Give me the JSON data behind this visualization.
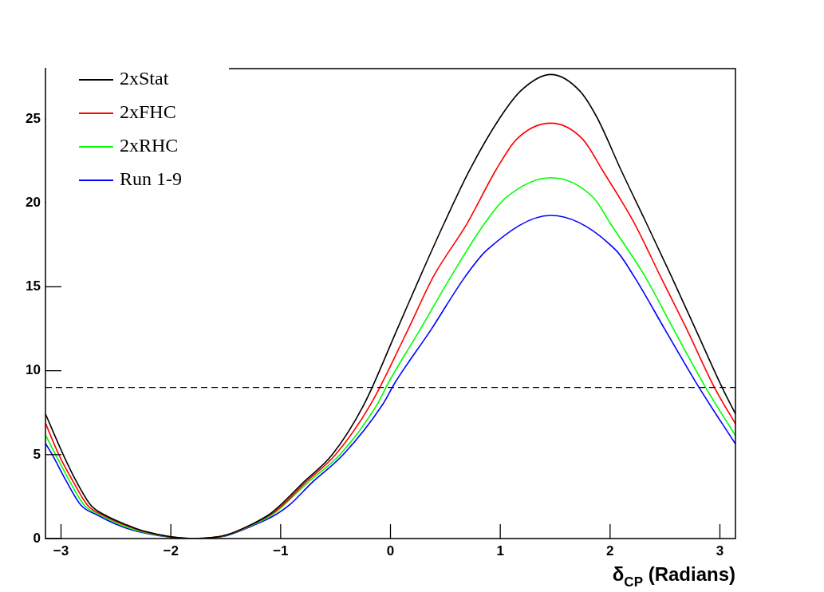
{
  "chart_data": {
    "type": "line",
    "xlabel": "δ$_{CP}$ (Radians)",
    "xlim": [
      -3.1416,
      3.1416
    ],
    "xticks": [
      {
        "value": -3,
        "label": "−3"
      },
      {
        "value": -2,
        "label": "−2"
      },
      {
        "value": -1,
        "label": "−1"
      },
      0,
      1,
      2,
      3
    ],
    "ylim": [
      0,
      28
    ],
    "yticks": [
      0,
      5,
      10,
      15,
      20,
      25
    ],
    "grid": false,
    "legend": "top left",
    "marker": "none",
    "line_style": "solid",
    "ref_lines": [
      {
        "axis": "y",
        "value": 9,
        "color": "#000000",
        "line_style": "dashed"
      }
    ],
    "series": [
      {
        "name": "2xStat",
        "color": "#000000",
        "x": [
          -3.14,
          -2.98,
          -2.86,
          -2.73,
          -2.6,
          -2.42,
          -2.25,
          -1.8,
          -1.5,
          -1.26,
          -1.1,
          -1.0,
          -0.8,
          -0.53,
          -0.24,
          0.06,
          0.27,
          0.49,
          0.72,
          1.0,
          1.19,
          1.46,
          1.72,
          1.88,
          2.1,
          2.33,
          2.56,
          2.78,
          3.02,
          3.14
        ],
        "values": [
          7.4,
          5,
          3.4,
          2,
          1.4,
          0.86,
          0.45,
          0,
          0.2,
          0.86,
          1.45,
          2,
          3.3,
          5,
          8,
          12.45,
          15.6,
          18.8,
          21.95,
          25.1,
          26.7,
          27.65,
          26.7,
          25.1,
          21.95,
          18.8,
          15.6,
          12.45,
          9,
          7.45
        ]
      },
      {
        "name": "2xFHC",
        "color": "#ff0000",
        "x": [
          -3.14,
          -3.02,
          -2.89,
          -2.76,
          -2.62,
          -2.44,
          -2.26,
          -1.8,
          -1.5,
          -1.26,
          -1.09,
          -0.98,
          -0.78,
          -0.5,
          -0.18,
          0.16,
          0.39,
          0.7,
          0.96,
          1.15,
          1.46,
          1.75,
          1.93,
          2.22,
          2.46,
          2.7,
          2.95,
          3.14
        ],
        "values": [
          6.85,
          5,
          3.4,
          2,
          1.4,
          0.86,
          0.44,
          0,
          0.2,
          0.84,
          1.43,
          2,
          3.3,
          5,
          8,
          12.45,
          15.6,
          18.8,
          21.95,
          23.8,
          24.75,
          23.8,
          21.95,
          18.8,
          15.6,
          12.45,
          9,
          6.85
        ]
      },
      {
        "name": "2xRHC",
        "color": "#00ff00",
        "x": [
          -3.14,
          -3.05,
          -2.92,
          -2.79,
          -2.64,
          -2.47,
          -2.28,
          -1.8,
          -1.5,
          -1.26,
          -1.08,
          -0.97,
          -0.76,
          -0.46,
          -0.12,
          -0.02,
          0.27,
          0.55,
          0.86,
          1.05,
          1.46,
          1.85,
          2.0,
          2.32,
          2.58,
          2.87,
          3.14
        ],
        "values": [
          6.15,
          5,
          3.4,
          2,
          1.4,
          0.86,
          0.43,
          0,
          0.18,
          0.8,
          1.4,
          2,
          3.3,
          5,
          8,
          9.27,
          12.45,
          15.6,
          18.8,
          20.3,
          21.5,
          20.3,
          18.8,
          15.6,
          12.45,
          9,
          6.15
        ]
      },
      {
        "name": "Run 1-9",
        "color": "#0000ff",
        "x": [
          -3.14,
          -3.08,
          -2.95,
          -2.82,
          -2.67,
          -2.5,
          -2.3,
          -1.8,
          -1.5,
          -1.26,
          -1.05,
          -0.92,
          -0.72,
          -0.43,
          -0.07,
          0.04,
          0.37,
          0.68,
          0.88,
          1.46,
          2.05,
          2.22,
          2.5,
          2.81,
          3.14
        ],
        "values": [
          5.65,
          5,
          3.4,
          2,
          1.4,
          0.86,
          0.42,
          0,
          0.16,
          0.75,
          1.4,
          2,
          3.3,
          5,
          8,
          9.27,
          12.45,
          15.6,
          17.2,
          19.25,
          17.2,
          15.6,
          12.45,
          9,
          5.65
        ]
      }
    ]
  }
}
